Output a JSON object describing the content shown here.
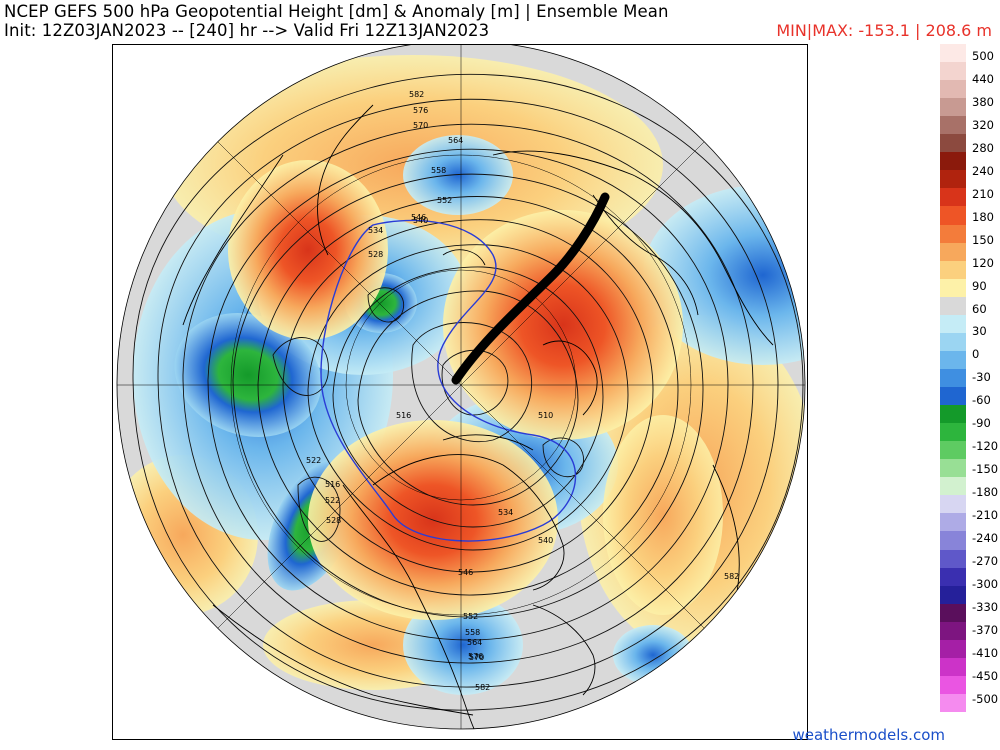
{
  "header": {
    "title_line1": "NCEP GEFS 500 hPa Geopotential Height [dm] & Anomaly [m] | Ensemble Mean",
    "title_line2": "Init: 12Z03JAN2023 -- [240] hr --> Valid Fri 12Z13JAN2023",
    "minmax": "MIN|MAX: -153.1 | 208.6 m"
  },
  "colorbar": {
    "labels": [
      "500",
      "440",
      "380",
      "320",
      "280",
      "240",
      "210",
      "180",
      "150",
      "120",
      "90",
      "60",
      "30",
      "0",
      "-30",
      "-60",
      "-90",
      "-120",
      "-150",
      "-180",
      "-210",
      "-240",
      "-270",
      "-300",
      "-330",
      "-370",
      "-410",
      "-450",
      "-500"
    ],
    "colors": [
      "#fde9e6",
      "#f3d4cf",
      "#e2b9b2",
      "#c89a92",
      "#a87168",
      "#8c4a3f",
      "#8b1a0c",
      "#b0230e",
      "#d8341a",
      "#ee5526",
      "#f37c3b",
      "#f7a85c",
      "#fbd07e",
      "#fdf1a8",
      "#d9d9d9",
      "#c5ecf6",
      "#9bd5f2",
      "#6bb6ec",
      "#3f8fe1",
      "#1f66d1",
      "#149a2a",
      "#2db53d",
      "#5ecb62",
      "#98df95",
      "#d2f1cf",
      "#d7d6f2",
      "#aeabe6",
      "#8884d9",
      "#5f58c9",
      "#3a2fb0",
      "#25209a",
      "#5a0f5c",
      "#7d1580",
      "#a51fa6",
      "#cc33c8",
      "#ea55e2",
      "#f58bef"
    ],
    "ticks_order_note_free": true
  },
  "map": {
    "contour_labels": [
      "582",
      "576",
      "570",
      "564",
      "558",
      "552",
      "546",
      "540",
      "534",
      "528",
      "522",
      "516",
      "510",
      "516",
      "522",
      "528",
      "534",
      "540",
      "546",
      "552",
      "558",
      "564",
      "570",
      "576",
      "582",
      "582",
      "582"
    ]
  },
  "footer": {
    "credit": "weathermodels.com"
  },
  "style": {
    "title_color": "#000000",
    "minmax_color": "#e8322a",
    "credit_color": "#1a4fc9",
    "missing_gray": "#d9d9d9"
  }
}
